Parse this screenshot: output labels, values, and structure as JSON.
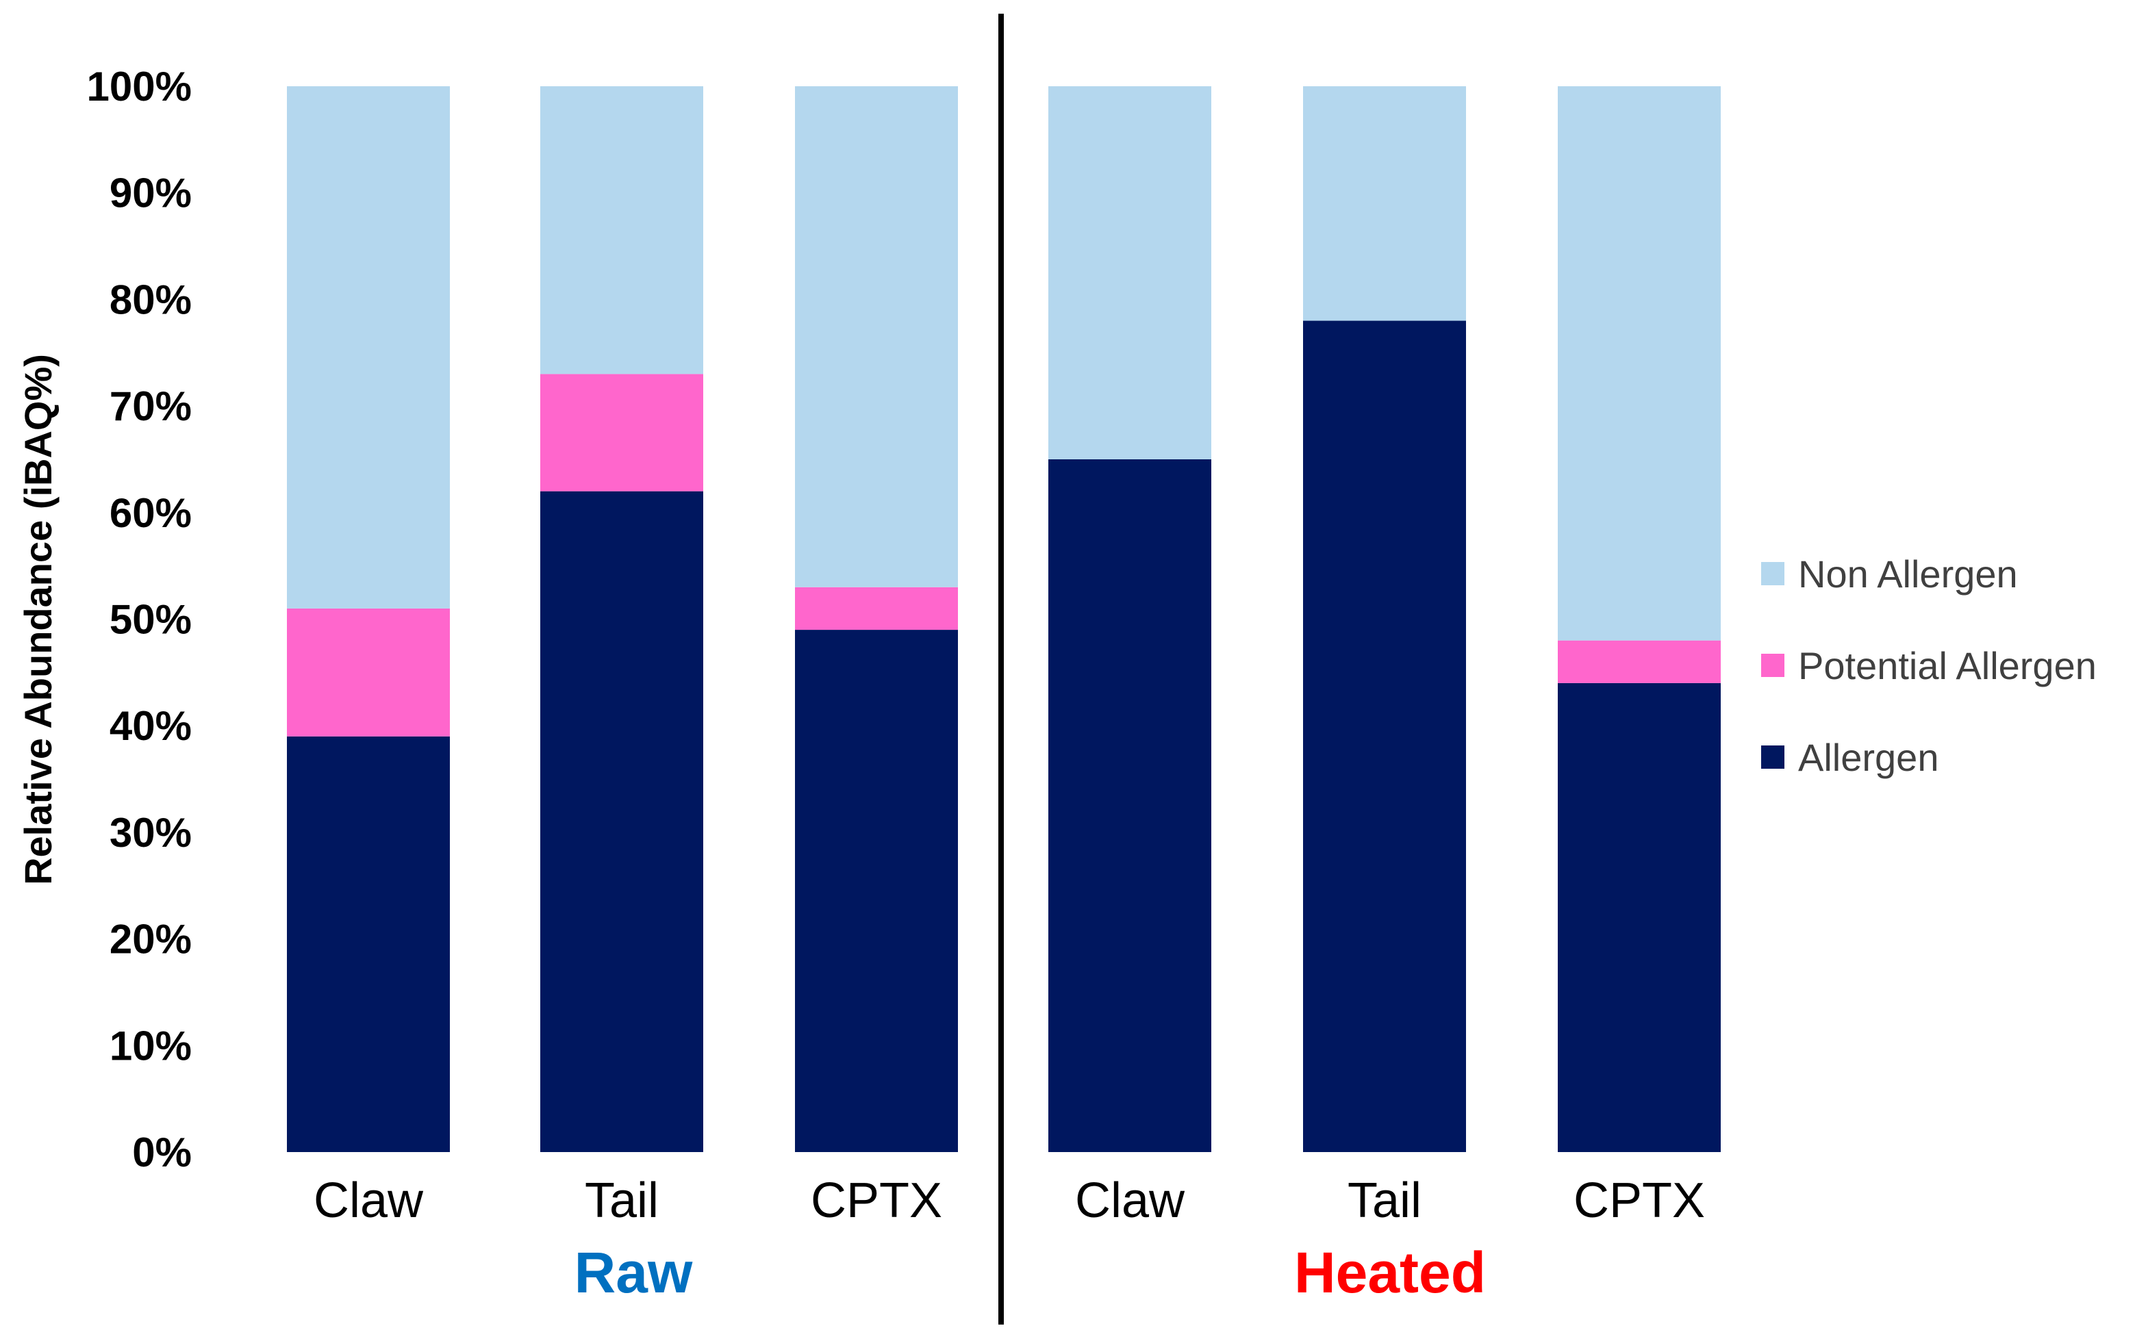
{
  "chart_data": {
    "type": "bar",
    "stacked": true,
    "percent_stacked": true,
    "title": "",
    "xlabel": "",
    "ylabel": "Relative Abundance (iBAQ%)",
    "ylim": [
      0,
      100
    ],
    "yticks": [
      "0%",
      "10%",
      "20%",
      "30%",
      "40%",
      "50%",
      "60%",
      "70%",
      "80%",
      "90%",
      "100%"
    ],
    "categories": [
      "Claw",
      "Tail",
      "CPTX",
      "Claw",
      "Tail",
      "CPTX"
    ],
    "groups": [
      {
        "label": "Raw",
        "color": "#0070C0",
        "categories": [
          "Claw",
          "Tail",
          "CPTX"
        ]
      },
      {
        "label": "Heated",
        "color": "#FF0000",
        "categories": [
          "Claw",
          "Tail",
          "CPTX"
        ]
      }
    ],
    "series": [
      {
        "name": "Allergen",
        "color": "#00175F",
        "values": [
          39,
          62,
          49,
          65,
          78,
          44
        ]
      },
      {
        "name": "Potential Allergen",
        "color": "#FF66CC",
        "values": [
          12,
          11,
          4,
          0,
          0,
          4
        ]
      },
      {
        "name": "Non Allergen",
        "color": "#B4D7EE",
        "values": [
          49,
          27,
          47,
          35,
          22,
          52
        ]
      }
    ],
    "legend": {
      "position": "right",
      "order": [
        "Non Allergen",
        "Potential Allergen",
        "Allergen"
      ]
    }
  }
}
